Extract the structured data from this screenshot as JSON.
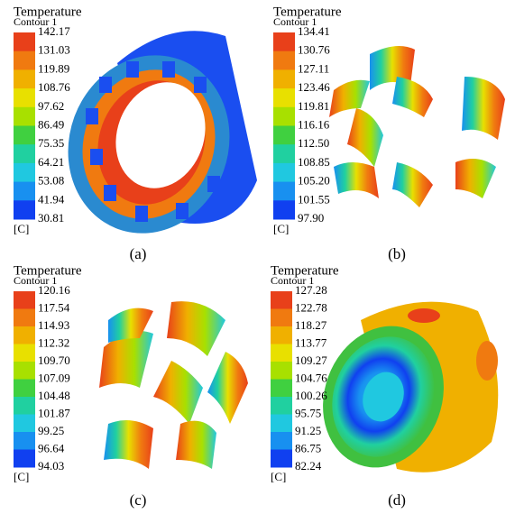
{
  "panels": [
    {
      "title": "Temperature",
      "subtitle": "Contour 1",
      "levels": [
        "142.17",
        "131.03",
        "119.89",
        "108.76",
        "97.62",
        "86.49",
        "75.35",
        "64.21",
        "53.08",
        "41.94",
        "30.81"
      ],
      "unit": "[C]",
      "caption": "(a)"
    },
    {
      "title": "Temperature",
      "subtitle": "Contour 1",
      "levels": [
        "134.41",
        "130.76",
        "127.11",
        "123.46",
        "119.81",
        "116.16",
        "112.50",
        "108.85",
        "105.20",
        "101.55",
        "97.90"
      ],
      "unit": "[C]",
      "caption": "(b)"
    },
    {
      "title": "Temperature",
      "subtitle": "Contour 1",
      "levels": [
        "120.16",
        "117.54",
        "114.93",
        "112.32",
        "109.70",
        "107.09",
        "104.48",
        "101.87",
        "99.25",
        "96.64",
        "94.03"
      ],
      "unit": "[C]",
      "caption": "(c)"
    },
    {
      "title": "Temperature",
      "subtitle": "Contour 1",
      "levels": [
        "127.28",
        "122.78",
        "118.27",
        "113.77",
        "109.27",
        "104.76",
        "100.26",
        "95.75",
        "91.25",
        "86.75",
        "82.24"
      ],
      "unit": "[C]",
      "caption": "(d)"
    }
  ]
}
